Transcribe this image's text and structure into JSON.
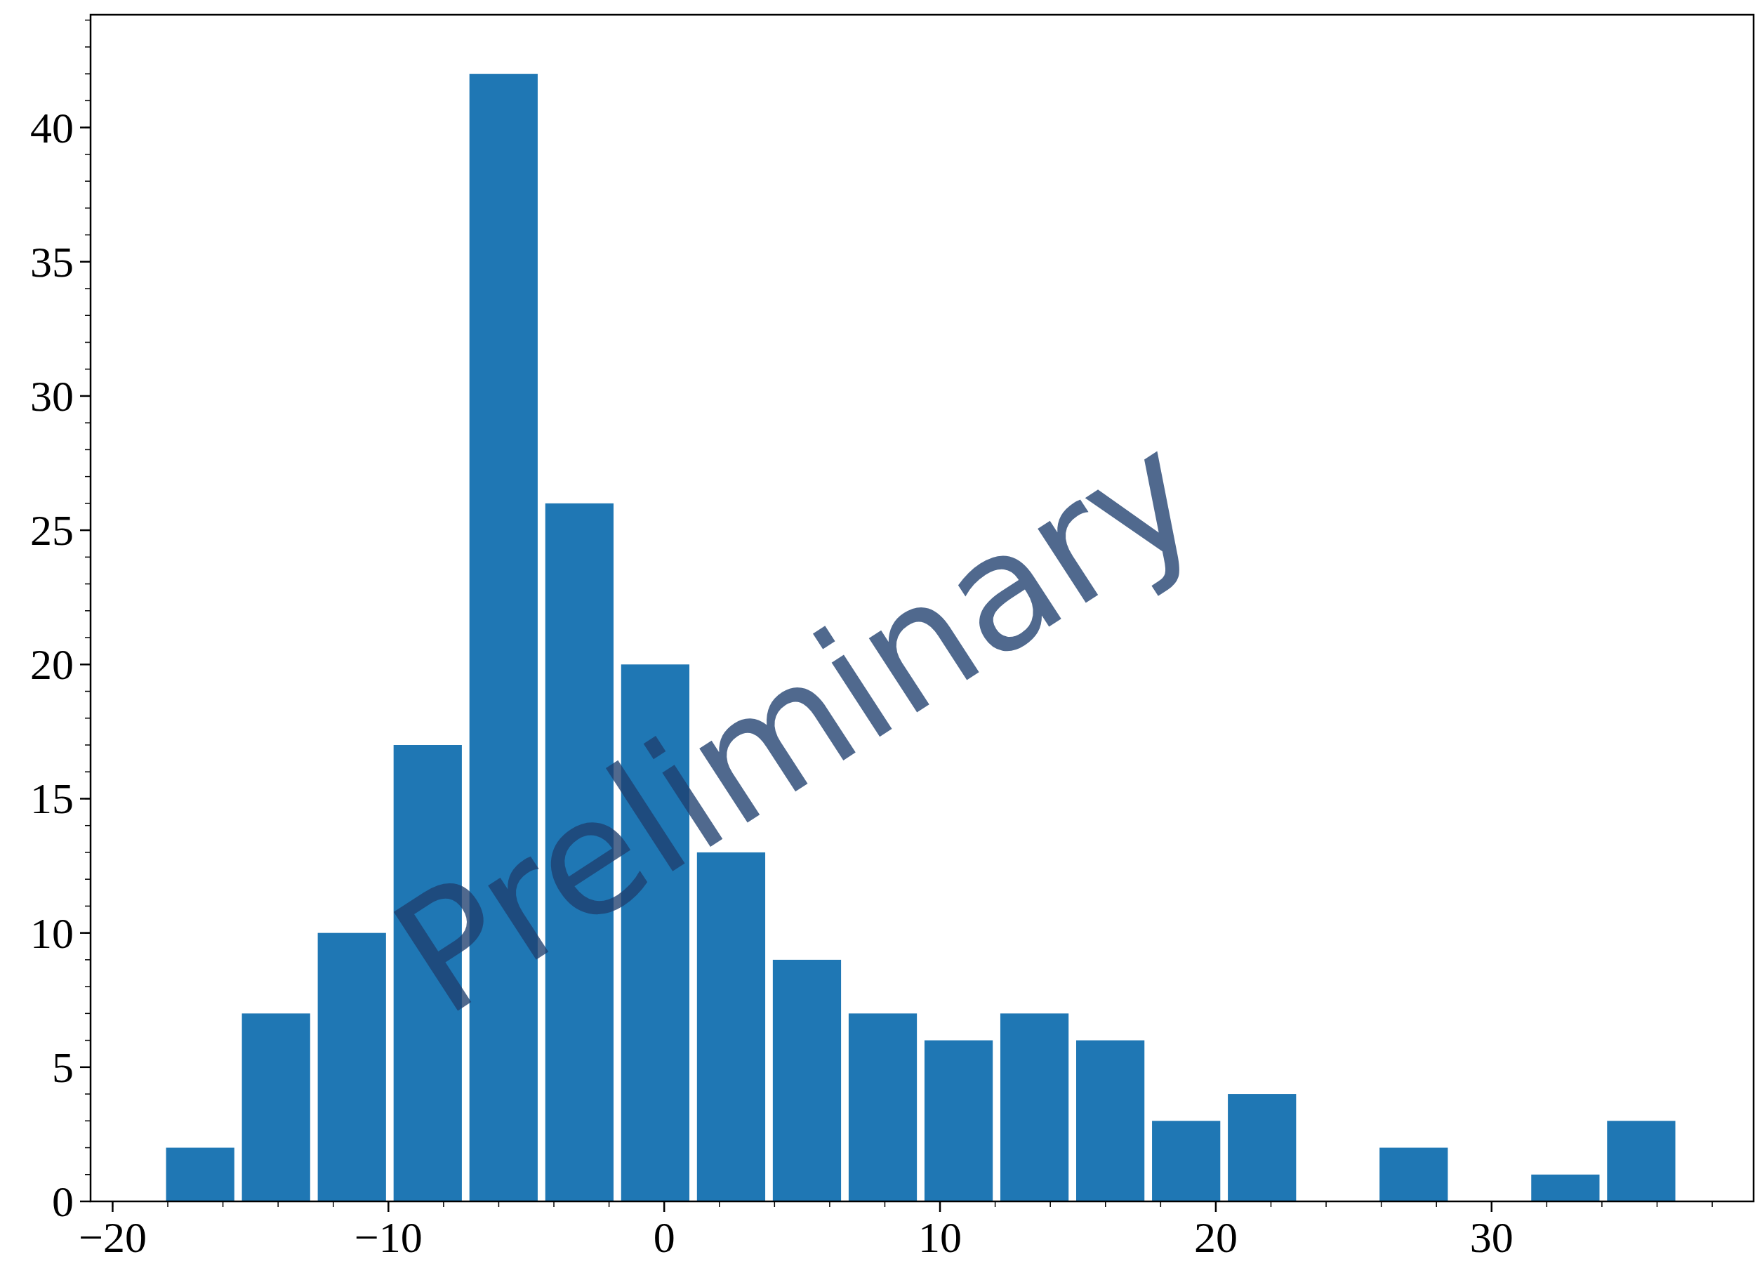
{
  "chart_data": {
    "type": "histogram",
    "bins": [
      -18.2,
      -15.45,
      -12.7,
      -9.95,
      -7.2,
      -4.45,
      -1.7,
      1.05,
      3.8,
      6.55,
      9.3,
      12.05,
      14.8,
      17.55,
      20.3,
      23.05,
      25.8,
      28.55,
      31.3,
      34.05,
      36.8
    ],
    "values": [
      2,
      7,
      10,
      17,
      42,
      26,
      20,
      13,
      9,
      7,
      6,
      7,
      6,
      3,
      4,
      0,
      2,
      0,
      1,
      3
    ],
    "color": "#1f77b4",
    "xlim": [
      -20.8,
      39.5
    ],
    "xticks": [
      {
        "value": -20,
        "label": "−20"
      },
      {
        "value": -10,
        "label": "−10"
      },
      0,
      10,
      20,
      30
    ],
    "ylim": [
      0,
      44.2
    ],
    "yticks": [
      0,
      5,
      10,
      15,
      20,
      25,
      30,
      35,
      40
    ],
    "annotations": [
      "Preliminary"
    ],
    "grid": false
  }
}
